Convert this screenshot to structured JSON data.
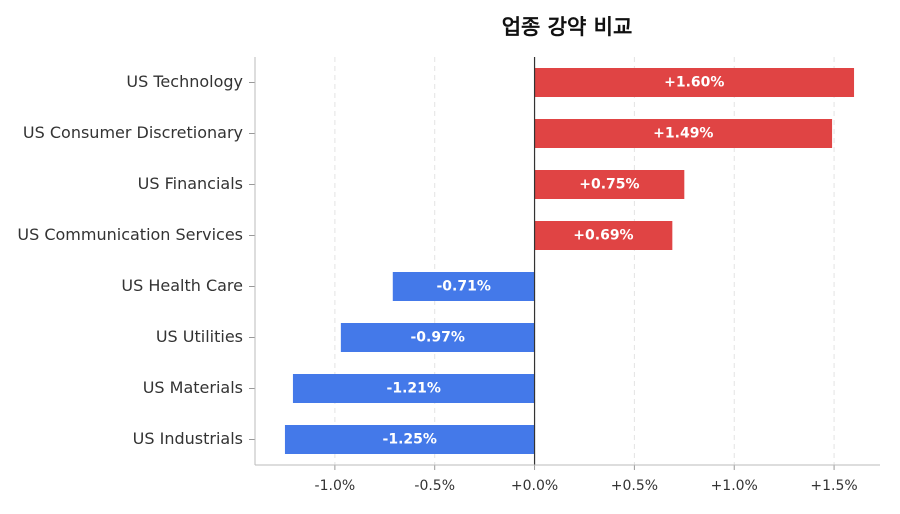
{
  "chart_data": {
    "type": "hbar",
    "title": "업종 강약 비교",
    "categories": [
      "US Technology",
      "US Consumer Discretionary",
      "US Financials",
      "US Communication Services",
      "US Health Care",
      "US Utilities",
      "US Materials",
      "US Industrials"
    ],
    "values": [
      1.6,
      1.49,
      0.75,
      0.69,
      -0.71,
      -0.97,
      -1.21,
      -1.25
    ],
    "value_labels": [
      "+1.60%",
      "+1.49%",
      "+0.75%",
      "+0.69%",
      "-0.71%",
      "-0.97%",
      "-1.21%",
      "-1.25%"
    ],
    "colors": [
      "#e04444",
      "#e04444",
      "#e04444",
      "#e04444",
      "#4479e9",
      "#4479e9",
      "#4479e9",
      "#4479e9"
    ],
    "xlim": [
      -1.4,
      1.73
    ],
    "xticks": [
      {
        "value": -1.0,
        "label": "-1.0%"
      },
      {
        "value": -0.5,
        "label": "-0.5%"
      },
      {
        "value": 0,
        "label": "+0.0%"
      },
      {
        "value": 0.5,
        "label": "+0.5%"
      },
      {
        "value": 1.0,
        "label": "+1.0%"
      },
      {
        "value": 1.5,
        "label": "+1.5%"
      }
    ],
    "grid": true
  }
}
